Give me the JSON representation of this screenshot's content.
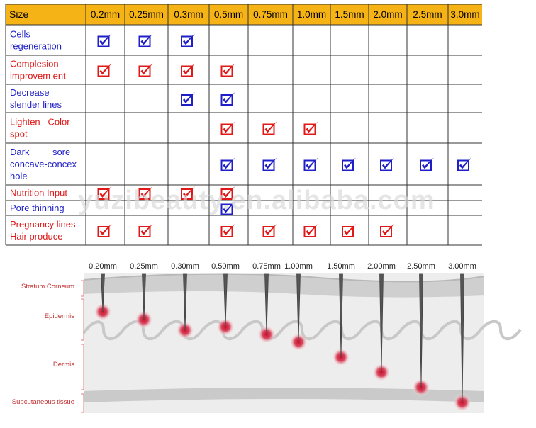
{
  "table": {
    "header_label": "Size",
    "sizes": [
      "0.2mm",
      "0.25mm",
      "0.3mm",
      "0.5mm",
      "0.75mm",
      "1.0mm",
      "1.5mm",
      "2.0mm",
      "2.5mm",
      "3.0mm"
    ],
    "rows": [
      {
        "lines": [
          "Cells",
          "regeneration"
        ],
        "color": "#1f1fc8",
        "checks": [
          true,
          true,
          true,
          false,
          false,
          false,
          false,
          false,
          false,
          false
        ]
      },
      {
        "lines": [
          "Complesion",
          "improvem ent"
        ],
        "color": "#e01818",
        "checks": [
          true,
          true,
          true,
          true,
          false,
          false,
          false,
          false,
          false,
          false
        ]
      },
      {
        "lines": [
          "Decrease",
          "slender lines"
        ],
        "color": "#1f1fc8",
        "checks": [
          false,
          false,
          true,
          true,
          false,
          false,
          false,
          false,
          false,
          false
        ]
      },
      {
        "lines": [
          "Lighten   Color",
          "spot"
        ],
        "color": "#e01818",
        "checks": [
          false,
          false,
          false,
          true,
          true,
          true,
          false,
          false,
          false,
          false
        ]
      },
      {
        "lines": [
          "Dark         sore",
          "concave-concex",
          "hole"
        ],
        "color": "#1f1fc8",
        "checks": [
          false,
          false,
          false,
          true,
          true,
          true,
          true,
          true,
          true,
          true
        ]
      },
      {
        "lines": [
          "Nutrition Input"
        ],
        "color": "#e01818",
        "checks": [
          true,
          true,
          true,
          true,
          false,
          false,
          false,
          false,
          false,
          false
        ]
      },
      {
        "lines": [
          "Pore thinning"
        ],
        "color": "#1f1fc8",
        "checks": [
          false,
          false,
          false,
          true,
          false,
          false,
          false,
          false,
          false,
          false
        ]
      },
      {
        "lines": [
          "Pregnancy lines",
          "Hair produce"
        ],
        "color": "#e01818",
        "checks": [
          true,
          true,
          false,
          true,
          true,
          true,
          true,
          true,
          false,
          false
        ]
      }
    ]
  },
  "colors": {
    "header_bg": "#f5b316",
    "border": "#333333",
    "check_blue": "#1f1fc8",
    "check_red": "#e01818"
  },
  "watermark": "yuzibeauty.en.alibaba.com",
  "diagram": {
    "needle_labels": [
      "0.20mm",
      "0.25mm",
      "0.30mm",
      "0.50mm",
      "0.75mm",
      "1.00mm",
      "1.50mm",
      "2.00mm",
      "2.50mm",
      "3.00mm"
    ],
    "layer_labels": [
      "Stratum Corneum",
      "Epidermis",
      "Dermis",
      "Subcutaneous tissue"
    ],
    "depth_mm": [
      0.2,
      0.25,
      0.3,
      0.5,
      0.75,
      1.0,
      1.5,
      2.0,
      2.5,
      3.0
    ]
  }
}
